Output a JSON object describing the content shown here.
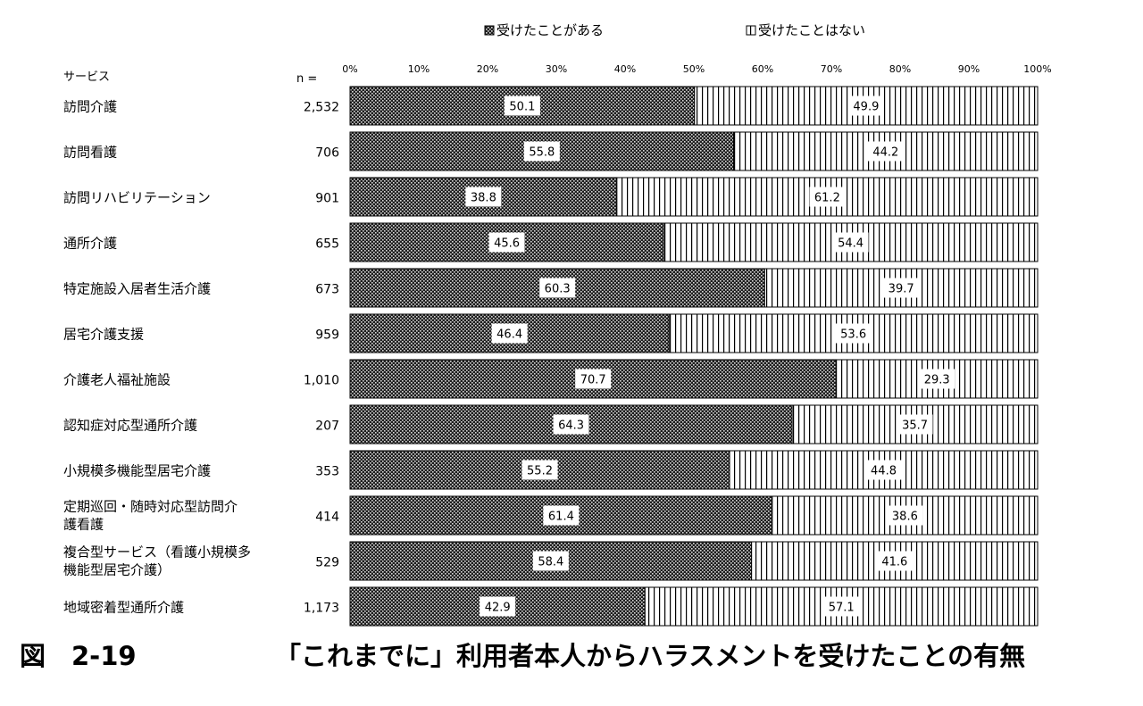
{
  "chart_data": {
    "type": "bar",
    "orientation": "horizontal",
    "stacked": "percent",
    "header_category": "サービス",
    "header_n": "n =",
    "categories": [
      [
        "訪問介護"
      ],
      [
        "訪問看護"
      ],
      [
        "訪問リハビリテーション"
      ],
      [
        "通所介護"
      ],
      [
        "特定施設入居者生活介護"
      ],
      [
        "居宅介護支援"
      ],
      [
        "介護老人福祉施設"
      ],
      [
        "認知症対応型通所介護"
      ],
      [
        "小規模多機能型居宅介護"
      ],
      [
        "定期巡回・随時対応型訪問介",
        "護看護"
      ],
      [
        "複合型サービス（看護小規模多",
        "機能型居宅介護）"
      ],
      [
        "地域密着型通所介護"
      ]
    ],
    "n": [
      "2,532",
      "706",
      "901",
      "655",
      "673",
      "959",
      "1,010",
      "207",
      "353",
      "414",
      "529",
      "1,173"
    ],
    "series": [
      {
        "name": "受けたことがある",
        "values": [
          50.1,
          55.8,
          38.8,
          45.6,
          60.3,
          46.4,
          70.7,
          64.3,
          55.2,
          61.4,
          58.4,
          42.9
        ],
        "pattern": "dots",
        "color": "#3a3a3a"
      },
      {
        "name": "受けたことはない",
        "values": [
          49.9,
          44.2,
          61.2,
          54.4,
          39.7,
          53.6,
          29.3,
          35.7,
          44.8,
          38.6,
          41.6,
          57.1
        ],
        "pattern": "vertical-lines",
        "color": "#ffffff"
      }
    ],
    "x_ticks": [
      "0%",
      "10%",
      "20%",
      "30%",
      "40%",
      "50%",
      "60%",
      "70%",
      "80%",
      "90%",
      "100%"
    ],
    "xlim": [
      0,
      100
    ],
    "legend_position": "top",
    "grid": false
  },
  "caption": {
    "figure_number": "図　2-19",
    "title": "「これまでに」利用者本人からハラスメントを受けたことの有無"
  }
}
